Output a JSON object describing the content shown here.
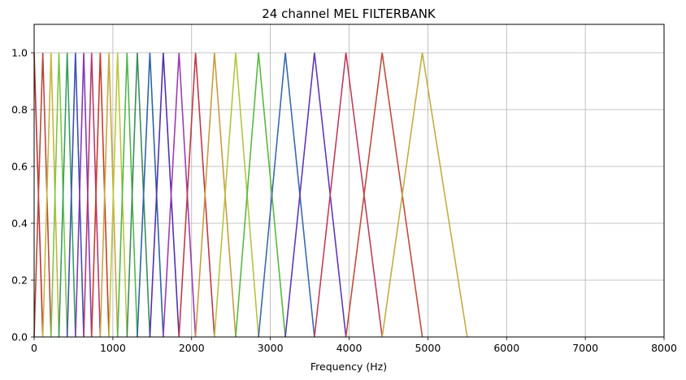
{
  "chart_data": {
    "type": "line",
    "title": "24 channel MEL FILTERBANK",
    "xlabel": "Frequency (Hz)",
    "ylabel": "",
    "xlim": [
      0,
      8000
    ],
    "ylim": [
      0,
      1.1
    ],
    "xticks": [
      0,
      1000,
      2000,
      3000,
      4000,
      5000,
      6000,
      7000,
      8000
    ],
    "xtick_labels": [
      "0",
      "1000",
      "2000",
      "3000",
      "4000",
      "5000",
      "6000",
      "7000",
      "8000"
    ],
    "yticks": [
      0.0,
      0.2,
      0.4,
      0.6,
      0.8,
      1.0
    ],
    "ytick_labels": [
      "0.0",
      "0.2",
      "0.4",
      "0.6",
      "0.8",
      "1.0"
    ],
    "grid": true,
    "legend": "none",
    "filter_edges_hz": [
      0,
      110,
      215,
      315,
      420,
      525,
      630,
      730,
      840,
      950,
      1060,
      1180,
      1310,
      1470,
      1640,
      1840,
      2050,
      2290,
      2560,
      2850,
      3190,
      3560,
      3960,
      4420,
      4930,
      5500
    ],
    "peak_value": 1.0,
    "series_colors": [
      "#c03232",
      "#b84a3c",
      "#c8b43c",
      "#7cc844",
      "#34a060",
      "#3d4fb4",
      "#8438b8",
      "#b83870",
      "#c83c2c",
      "#c8a83c",
      "#b8c83c",
      "#50b848",
      "#3c8c5c",
      "#2c64a8",
      "#5030b0",
      "#9c3cb0",
      "#c03848",
      "#c89c40",
      "#b4c440",
      "#58b840",
      "#3a6aa8",
      "#6038b8",
      "#c03c5c",
      "#c04c3c",
      "#c4ac44",
      "#a8c448"
    ]
  }
}
